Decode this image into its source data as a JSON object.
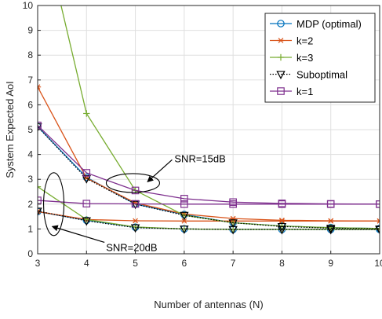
{
  "chart_data": {
    "type": "line",
    "title": "",
    "xlabel": "Number of antennas (N)",
    "ylabel": "System Expected AoI",
    "xlim": [
      3,
      10
    ],
    "ylim": [
      0,
      10
    ],
    "x_ticks": [
      "3",
      "4",
      "5",
      "6",
      "7",
      "8",
      "9",
      "10"
    ],
    "y_ticks": [
      "0",
      "1",
      "2",
      "3",
      "4",
      "5",
      "6",
      "7",
      "8",
      "9",
      "10"
    ],
    "grid": true,
    "legend_position": "top-right",
    "x": [
      3,
      4,
      5,
      6,
      7,
      8,
      9,
      10
    ],
    "series": [
      {
        "name": "MDP (optimal)",
        "color": "#0072BD",
        "marker": "circle",
        "line": "solid",
        "groups": [
          [
            5.12,
            3.08,
            2.0,
            1.58,
            1.25,
            1.12,
            1.05,
            1.02
          ],
          [
            1.7,
            1.35,
            1.07,
            1.0,
            0.98,
            0.98,
            0.98,
            0.98
          ]
        ]
      },
      {
        "name": "k=2",
        "color": "#D95319",
        "marker": "asterisk",
        "line": "solid",
        "groups": [
          [
            6.72,
            3.05,
            2.05,
            1.6,
            1.42,
            1.35,
            1.33,
            1.32
          ],
          [
            1.7,
            1.38,
            1.33,
            1.32,
            1.32,
            1.32,
            1.32,
            1.32
          ]
        ]
      },
      {
        "name": "k=3",
        "color": "#77AC30",
        "marker": "plus",
        "line": "solid",
        "groups": [
          [
            14.0,
            5.65,
            2.55,
            1.55,
            1.25,
            1.12,
            1.05,
            1.02
          ],
          [
            2.7,
            1.38,
            1.08,
            1.0,
            0.98,
            0.98,
            0.98,
            0.98
          ]
        ]
      },
      {
        "name": "Suboptimal",
        "color": "#000000",
        "marker": "triangle-down",
        "line": "dotted",
        "groups": [
          [
            5.12,
            3.03,
            2.0,
            1.55,
            1.25,
            1.1,
            1.03,
            1.0
          ],
          [
            1.72,
            1.33,
            1.05,
            1.0,
            0.98,
            0.98,
            0.98,
            0.98
          ]
        ]
      },
      {
        "name": "k=1",
        "color": "#7E2F8E",
        "marker": "square",
        "line": "solid",
        "groups": [
          [
            5.17,
            3.26,
            2.55,
            2.22,
            2.08,
            2.03,
            2.01,
            2.0
          ],
          [
            2.15,
            2.02,
            2.01,
            2.0,
            2.0,
            2.0,
            2.0,
            2.0
          ]
        ]
      }
    ],
    "annotations": [
      {
        "text": "SNR=15dB",
        "points_to": {
          "x": 5.25,
          "y": 2.9
        },
        "at": {
          "x": 5.8,
          "y": 3.85
        }
      },
      {
        "text": "SNR=20dB",
        "points_to": {
          "x": 3.3,
          "y": 1.1
        },
        "at": {
          "x": 4.4,
          "y": 0.27
        }
      }
    ]
  }
}
